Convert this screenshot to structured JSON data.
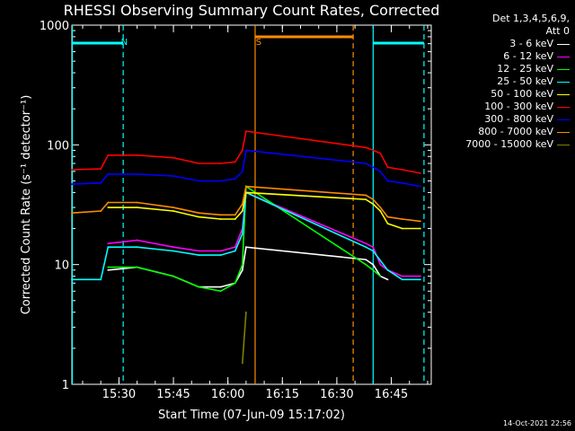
{
  "chart_data": {
    "type": "line",
    "title": "RHESSI Observing Summary Count Rates, Corrected",
    "xlabel": "Start Time (07-Jun-09 15:17:02)",
    "ylabel": "Corrected Count Rate (s⁻¹ detector⁻¹)",
    "yscale": "log",
    "ylim": [
      1,
      1000
    ],
    "xlim": [
      "15:17:02",
      "16:56"
    ],
    "x_ticks": [
      "15:30",
      "15:45",
      "16:00",
      "16:15",
      "16:30",
      "16:45"
    ],
    "y_ticks": [
      "1",
      "10",
      "100",
      "1000"
    ],
    "legend": {
      "placement": "top-right",
      "header": [
        "Det 1,3,4,5,6,9,",
        "Att 0"
      ]
    },
    "series": [
      {
        "name": "3 - 6 keV",
        "color": "#ffffff",
        "x": [
          "15:27",
          "15:35",
          "15:45",
          "15:52",
          "15:58",
          "16:02",
          "16:04",
          "16:05",
          "16:38",
          "16:40",
          "16:42",
          "16:44"
        ],
        "y": [
          9,
          9.5,
          8,
          6.5,
          6.5,
          7,
          9,
          14,
          11,
          10,
          8,
          7.5
        ]
      },
      {
        "name": "6 - 12 keV",
        "color": "#ff00ff",
        "x": [
          "15:27",
          "15:35",
          "15:45",
          "15:52",
          "15:58",
          "16:02",
          "16:04",
          "16:05",
          "16:38",
          "16:40",
          "16:42",
          "16:44",
          "16:48",
          "16:53"
        ],
        "y": [
          15,
          16,
          14,
          13,
          13,
          14,
          20,
          40,
          15,
          14,
          10,
          9,
          8,
          8
        ]
      },
      {
        "name": "12 - 25 keV",
        "color": "#00ff00",
        "x": [
          "15:27",
          "15:35",
          "15:45",
          "15:52",
          "15:58",
          "16:02",
          "16:04",
          "16:05",
          "16:38",
          "16:40",
          "16:42"
        ],
        "y": [
          9.5,
          9.5,
          8,
          6.5,
          6,
          7,
          10,
          45,
          10,
          9,
          8
        ]
      },
      {
        "name": "25 - 50 keV",
        "color": "#00ffff",
        "x": [
          "15:17",
          "15:25",
          "15:27",
          "15:35",
          "15:45",
          "15:52",
          "15:58",
          "16:02",
          "16:04",
          "16:05",
          "16:38",
          "16:40",
          "16:44",
          "16:48",
          "16:53"
        ],
        "y": [
          7.5,
          7.5,
          14,
          14,
          13,
          12,
          12,
          13,
          18,
          40,
          14,
          13,
          9,
          7.5,
          7.5
        ]
      },
      {
        "name": "50 - 100 keV",
        "color": "#ffff00",
        "x": [
          "15:27",
          "15:35",
          "15:45",
          "15:52",
          "15:58",
          "16:02",
          "16:04",
          "16:05",
          "16:38",
          "16:40",
          "16:42",
          "16:44",
          "16:48",
          "16:53"
        ],
        "y": [
          30,
          30,
          28,
          25,
          24,
          24,
          28,
          40,
          35,
          32,
          28,
          22,
          20,
          20
        ]
      },
      {
        "name": "100 - 300 keV",
        "color": "#ff0000",
        "x": [
          "15:17",
          "15:25",
          "15:27",
          "15:35",
          "15:45",
          "15:52",
          "15:58",
          "16:02",
          "16:04",
          "16:05",
          "16:38",
          "16:40",
          "16:42",
          "16:44",
          "16:48",
          "16:53"
        ],
        "y": [
          62,
          63,
          82,
          82,
          78,
          70,
          70,
          72,
          90,
          130,
          95,
          90,
          85,
          65,
          62,
          58
        ]
      },
      {
        "name": "300 - 800 keV",
        "color": "#0000ff",
        "x": [
          "15:17",
          "15:25",
          "15:27",
          "15:35",
          "15:45",
          "15:52",
          "15:58",
          "16:02",
          "16:04",
          "16:05",
          "16:38",
          "16:40",
          "16:42",
          "16:44",
          "16:48",
          "16:53"
        ],
        "y": [
          47,
          48,
          57,
          57,
          55,
          50,
          50,
          52,
          60,
          90,
          70,
          65,
          60,
          50,
          48,
          45
        ]
      },
      {
        "name": "800 - 7000 keV",
        "color": "#ff8c00",
        "x": [
          "15:17",
          "15:25",
          "15:27",
          "15:35",
          "15:45",
          "15:52",
          "15:58",
          "16:02",
          "16:04",
          "16:05",
          "16:38",
          "16:40",
          "16:42",
          "16:44",
          "16:48",
          "16:53"
        ],
        "y": [
          27,
          28,
          33,
          33,
          30,
          27,
          26,
          26,
          32,
          45,
          38,
          35,
          30,
          25,
          24,
          23
        ]
      },
      {
        "name": "7000 - 15000 keV",
        "color": "#808000",
        "x": [
          "16:04",
          "16:05"
        ],
        "y": [
          1.5,
          4
        ]
      }
    ],
    "annotations": [
      {
        "label": "N",
        "color": "#00ffff",
        "text_at": "15:30"
      },
      {
        "label": "S",
        "color": "#ff8c00",
        "text_at": "16:07"
      }
    ]
  },
  "footer": {
    "date": "14-Oct-2021 22:56"
  }
}
